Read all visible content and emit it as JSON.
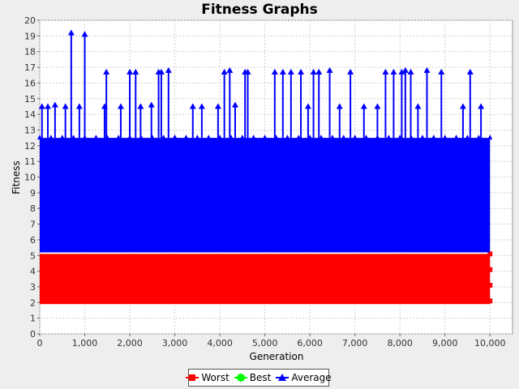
{
  "chart_data": {
    "type": "line",
    "title": "Fitness Graphs",
    "xlabel": "Generation",
    "ylabel": "Fitness",
    "xlim": [
      0,
      10500
    ],
    "ylim": [
      0,
      20
    ],
    "x_ticks": [
      0,
      1000,
      2000,
      3000,
      4000,
      5000,
      6000,
      7000,
      8000,
      9000,
      10000
    ],
    "x_tick_labels": [
      "0",
      "1,000",
      "2,000",
      "3,000",
      "4,000",
      "5,000",
      "6,000",
      "7,000",
      "8,000",
      "9,000",
      "10,000"
    ],
    "y_ticks": [
      0,
      1,
      2,
      3,
      4,
      5,
      6,
      7,
      8,
      9,
      10,
      11,
      12,
      13,
      14,
      15,
      16,
      17,
      18,
      19,
      20
    ],
    "grid": true,
    "legend_position": "bottom",
    "x_range_covered": [
      0,
      10000
    ],
    "series": [
      {
        "name": "Worst",
        "color": "#ff0000",
        "marker": "square",
        "min": 1.9,
        "max": 5.1
      },
      {
        "name": "Best",
        "color": "#00ff00",
        "marker": "circle"
      },
      {
        "name": "Average",
        "color": "#0000ff",
        "marker": "triangle",
        "min": 5.2,
        "typical_max": 12.5,
        "spikes": [
          {
            "x": 50,
            "y": 14.5
          },
          {
            "x": 180,
            "y": 14.5
          },
          {
            "x": 340,
            "y": 14.6
          },
          {
            "x": 570,
            "y": 14.5
          },
          {
            "x": 700,
            "y": 19.2
          },
          {
            "x": 880,
            "y": 14.5
          },
          {
            "x": 1000,
            "y": 19.1
          },
          {
            "x": 1440,
            "y": 14.5
          },
          {
            "x": 1480,
            "y": 16.7
          },
          {
            "x": 1800,
            "y": 14.5
          },
          {
            "x": 2000,
            "y": 16.7
          },
          {
            "x": 2130,
            "y": 16.7
          },
          {
            "x": 2240,
            "y": 14.5
          },
          {
            "x": 2480,
            "y": 14.6
          },
          {
            "x": 2640,
            "y": 16.7
          },
          {
            "x": 2700,
            "y": 16.7
          },
          {
            "x": 2860,
            "y": 16.8
          },
          {
            "x": 3000,
            "y": 12.5
          },
          {
            "x": 3400,
            "y": 14.5
          },
          {
            "x": 3600,
            "y": 14.5
          },
          {
            "x": 3960,
            "y": 14.5
          },
          {
            "x": 4100,
            "y": 16.7
          },
          {
            "x": 4220,
            "y": 16.8
          },
          {
            "x": 4340,
            "y": 14.6
          },
          {
            "x": 4560,
            "y": 16.7
          },
          {
            "x": 4620,
            "y": 16.7
          },
          {
            "x": 5220,
            "y": 16.7
          },
          {
            "x": 5400,
            "y": 16.7
          },
          {
            "x": 5580,
            "y": 16.7
          },
          {
            "x": 5800,
            "y": 16.7
          },
          {
            "x": 5960,
            "y": 14.5
          },
          {
            "x": 6080,
            "y": 16.7
          },
          {
            "x": 6200,
            "y": 16.7
          },
          {
            "x": 6440,
            "y": 16.8
          },
          {
            "x": 6660,
            "y": 14.5
          },
          {
            "x": 6900,
            "y": 16.7
          },
          {
            "x": 7200,
            "y": 14.5
          },
          {
            "x": 7500,
            "y": 14.5
          },
          {
            "x": 7680,
            "y": 16.7
          },
          {
            "x": 7860,
            "y": 16.7
          },
          {
            "x": 8040,
            "y": 16.7
          },
          {
            "x": 8120,
            "y": 16.8
          },
          {
            "x": 8240,
            "y": 16.7
          },
          {
            "x": 8400,
            "y": 14.5
          },
          {
            "x": 8600,
            "y": 16.8
          },
          {
            "x": 8920,
            "y": 16.7
          },
          {
            "x": 9400,
            "y": 14.5
          },
          {
            "x": 9560,
            "y": 16.7
          },
          {
            "x": 9800,
            "y": 14.5
          }
        ]
      }
    ]
  },
  "legend": {
    "items": [
      {
        "label": "Worst",
        "color": "#ff0000",
        "marker": "square"
      },
      {
        "label": "Best",
        "color": "#00ff00",
        "marker": "circle"
      },
      {
        "label": "Average",
        "color": "#0000ff",
        "marker": "triangle"
      }
    ]
  }
}
